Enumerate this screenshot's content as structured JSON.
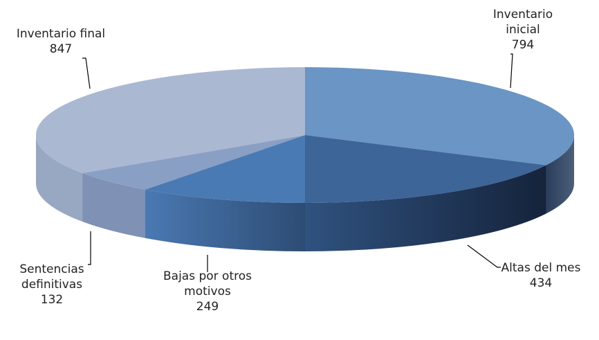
{
  "chart_data": {
    "type": "pie",
    "title": "",
    "categories": [
      "Inventario inicial",
      "Altas del mes",
      "Bajas por otros motivos",
      "Sentencias definitivas",
      "Inventario final"
    ],
    "values": [
      794,
      434,
      249,
      132,
      847
    ],
    "colors": [
      "#6a95c4",
      "#3e6598",
      "#4a7ab3",
      "#8a9fc4",
      "#aab8d2"
    ],
    "legend": "none",
    "data_labels": [
      {
        "name_lines": [
          "Inventario",
          "inicial"
        ],
        "value": "794"
      },
      {
        "name_lines": [
          "Altas del mes"
        ],
        "value": "434"
      },
      {
        "name_lines": [
          "Bajas por otros",
          "motivos"
        ],
        "value": "249"
      },
      {
        "name_lines": [
          "Sentencias",
          "definitivas"
        ],
        "value": "132"
      },
      {
        "name_lines": [
          "Inventario final"
        ],
        "value": "847"
      }
    ]
  }
}
